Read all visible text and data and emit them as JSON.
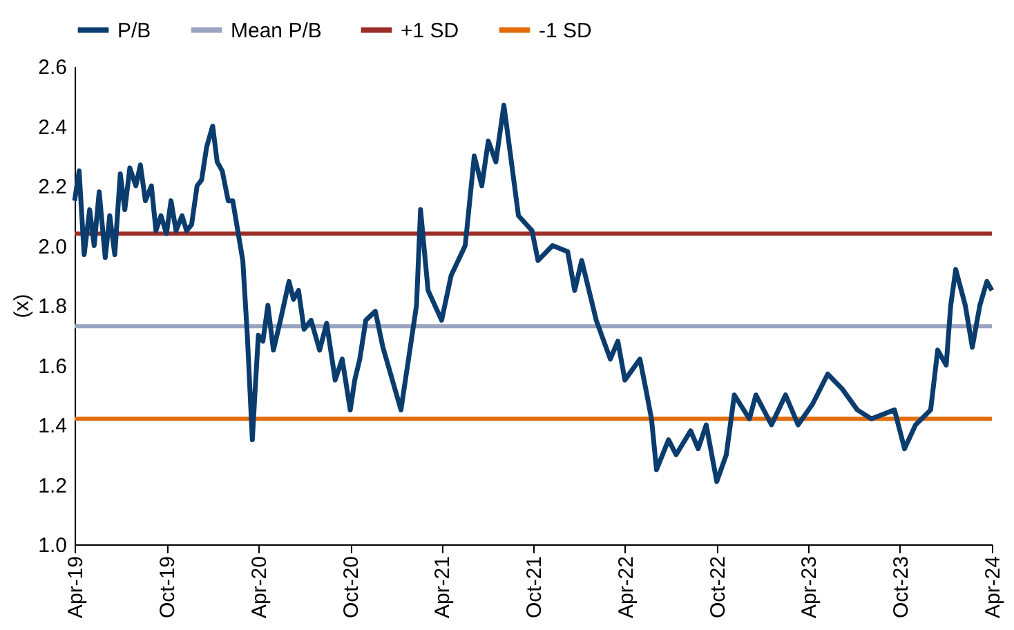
{
  "chart_data": {
    "type": "line",
    "ylabel": "(x)",
    "legend": "top",
    "grid": false,
    "line_style": "solid",
    "marker": "none",
    "xlim": [
      "2019-04-01",
      "2024-04-01"
    ],
    "xticks": [
      {
        "value": "2019-04-01",
        "label": "Apr-19"
      },
      {
        "value": "2019-10-01",
        "label": "Oct-19"
      },
      {
        "value": "2020-04-01",
        "label": "Apr-20"
      },
      {
        "value": "2020-10-01",
        "label": "Oct-20"
      },
      {
        "value": "2021-04-01",
        "label": "Apr-21"
      },
      {
        "value": "2021-10-01",
        "label": "Oct-21"
      },
      {
        "value": "2022-04-01",
        "label": "Apr-22"
      },
      {
        "value": "2022-10-01",
        "label": "Oct-22"
      },
      {
        "value": "2023-04-01",
        "label": "Apr-23"
      },
      {
        "value": "2023-10-01",
        "label": "Oct-23"
      },
      {
        "value": "2024-04-01",
        "label": "Apr-24"
      }
    ],
    "ylim": [
      1.0,
      2.6
    ],
    "yticks": [
      {
        "value": 1.0,
        "label": "1.0"
      },
      {
        "value": 1.2,
        "label": "1.2"
      },
      {
        "value": 1.4,
        "label": "1.4"
      },
      {
        "value": 1.6,
        "label": "1.6"
      },
      {
        "value": 1.8,
        "label": "1.8"
      },
      {
        "value": 2.0,
        "label": "2.0"
      },
      {
        "value": 2.2,
        "label": "2.2"
      },
      {
        "value": 2.4,
        "label": "2.4"
      },
      {
        "value": 2.6,
        "label": "2.6"
      }
    ],
    "series": [
      {
        "name": "P/B",
        "color": "#0b3c6e",
        "x": [
          "2019-04-01",
          "2019-04-10",
          "2019-04-20",
          "2019-05-01",
          "2019-05-10",
          "2019-05-20",
          "2019-06-01",
          "2019-06-10",
          "2019-06-20",
          "2019-07-01",
          "2019-07-10",
          "2019-07-20",
          "2019-08-01",
          "2019-08-10",
          "2019-08-20",
          "2019-09-01",
          "2019-09-10",
          "2019-09-20",
          "2019-10-01",
          "2019-10-10",
          "2019-10-20",
          "2019-11-01",
          "2019-11-10",
          "2019-11-20",
          "2019-12-01",
          "2019-12-10",
          "2019-12-20",
          "2020-01-01",
          "2020-01-10",
          "2020-01-20",
          "2020-02-01",
          "2020-02-10",
          "2020-02-20",
          "2020-03-01",
          "2020-03-10",
          "2020-03-20",
          "2020-03-25",
          "2020-04-01",
          "2020-04-10",
          "2020-04-20",
          "2020-05-01",
          "2020-05-15",
          "2020-06-01",
          "2020-06-10",
          "2020-06-20",
          "2020-07-01",
          "2020-07-15",
          "2020-08-01",
          "2020-08-15",
          "2020-09-01",
          "2020-09-15",
          "2020-10-01",
          "2020-10-10",
          "2020-10-20",
          "2020-11-01",
          "2020-11-20",
          "2020-12-05",
          "2021-01-10",
          "2021-02-10",
          "2021-02-18",
          "2021-03-05",
          "2021-04-01",
          "2021-04-20",
          "2021-05-18",
          "2021-06-05",
          "2021-06-20",
          "2021-07-03",
          "2021-07-18",
          "2021-08-03",
          "2021-08-18",
          "2021-09-01",
          "2021-09-28",
          "2021-10-10",
          "2021-11-08",
          "2021-12-08",
          "2021-12-22",
          "2022-01-05",
          "2022-02-03",
          "2022-03-03",
          "2022-03-18",
          "2022-04-01",
          "2022-05-01",
          "2022-05-15",
          "2022-05-24",
          "2022-06-03",
          "2022-06-27",
          "2022-07-12",
          "2022-08-10",
          "2022-08-25",
          "2022-09-10",
          "2022-10-01",
          "2022-10-20",
          "2022-11-05",
          "2022-12-05",
          "2022-12-18",
          "2023-01-18",
          "2023-02-15",
          "2023-03-12",
          "2023-04-10",
          "2023-05-10",
          "2023-06-08",
          "2023-07-08",
          "2023-08-05",
          "2023-09-20",
          "2023-10-10",
          "2023-11-01",
          "2023-12-01",
          "2023-12-15",
          "2024-01-01",
          "2024-01-10",
          "2024-01-20",
          "2024-02-08",
          "2024-02-22",
          "2024-03-08",
          "2024-03-22",
          "2024-04-01"
        ],
        "values": [
          2.15,
          2.25,
          1.97,
          2.12,
          2.0,
          2.18,
          1.96,
          2.1,
          1.97,
          2.24,
          2.12,
          2.26,
          2.2,
          2.27,
          2.15,
          2.2,
          2.05,
          2.1,
          2.04,
          2.15,
          2.05,
          2.1,
          2.05,
          2.07,
          2.2,
          2.22,
          2.33,
          2.4,
          2.28,
          2.25,
          2.15,
          2.15,
          2.05,
          1.95,
          1.7,
          1.35,
          1.5,
          1.7,
          1.68,
          1.8,
          1.65,
          1.75,
          1.88,
          1.82,
          1.85,
          1.72,
          1.75,
          1.65,
          1.74,
          1.55,
          1.62,
          1.45,
          1.55,
          1.62,
          1.75,
          1.78,
          1.66,
          1.45,
          1.8,
          2.12,
          1.85,
          1.75,
          1.9,
          2.0,
          2.3,
          2.2,
          2.35,
          2.28,
          2.47,
          2.28,
          2.1,
          2.05,
          1.95,
          2.0,
          1.98,
          1.85,
          1.95,
          1.75,
          1.62,
          1.68,
          1.55,
          1.62,
          1.5,
          1.42,
          1.25,
          1.35,
          1.3,
          1.38,
          1.32,
          1.4,
          1.21,
          1.3,
          1.5,
          1.42,
          1.5,
          1.4,
          1.5,
          1.4,
          1.47,
          1.57,
          1.52,
          1.45,
          1.42,
          1.45,
          1.32,
          1.4,
          1.45,
          1.65,
          1.6,
          1.8,
          1.92,
          1.8,
          1.66,
          1.8,
          1.88,
          1.85
        ]
      }
    ],
    "ref_lines": [
      {
        "axis": "y",
        "value": 1.73,
        "label": "Mean P/B",
        "color": "#98a4c0"
      },
      {
        "axis": "y",
        "value": 2.04,
        "label": "+1 SD",
        "color": "#9b2d26"
      },
      {
        "axis": "y",
        "value": 1.42,
        "label": "-1 SD",
        "color": "#e36c0a"
      }
    ]
  }
}
